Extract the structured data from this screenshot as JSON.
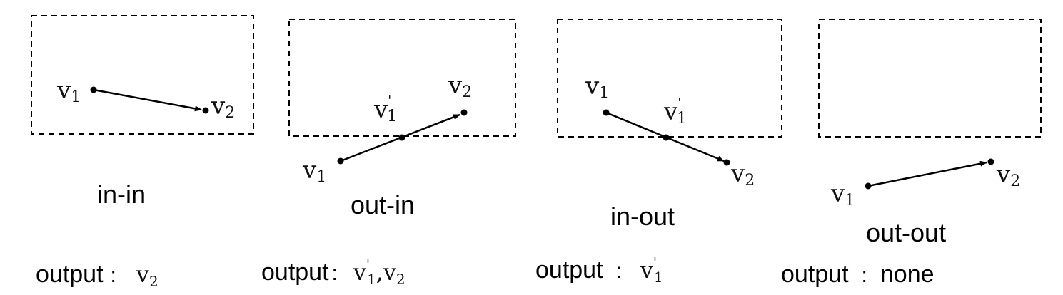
{
  "vertex_symbol": "v",
  "prime_mark": "'",
  "sub1": "1",
  "sub2": "2",
  "output_label": "output",
  "output_colon": ":",
  "comma": ",",
  "none_text": "none",
  "panels": [
    {
      "caption": "in-in"
    },
    {
      "caption": "out-in"
    },
    {
      "caption": "in-out"
    },
    {
      "caption": "out-out"
    }
  ]
}
